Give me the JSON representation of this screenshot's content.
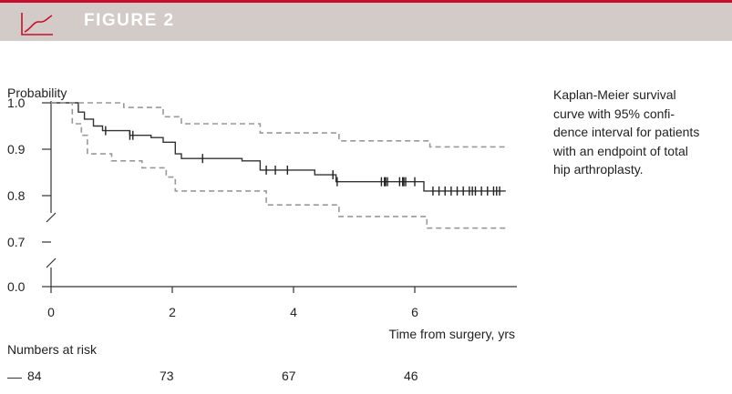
{
  "header": {
    "title": "FIGURE 2",
    "accent_color": "#c8102e",
    "band_color": "#d2cbc7",
    "icon": "line-chart-icon"
  },
  "caption": {
    "lines": [
      "Kaplan-Meier survival",
      "curve with 95% confi-",
      "dence interval for patients",
      "with an endpoint of total",
      "hip arthroplasty."
    ]
  },
  "risk_table": {
    "title": "Numbers at risk",
    "values": [
      "84",
      "73",
      "67",
      "46"
    ]
  },
  "chart_data": {
    "type": "line",
    "ylabel": "Probability",
    "xlabel": "Time from surgery, yrs",
    "xlim": [
      0,
      7.6
    ],
    "x_ticks": [
      "0",
      "2",
      "4",
      "6"
    ],
    "y_ticks": [
      "1.0",
      "0.9",
      "0.8",
      "0.7",
      "0.0"
    ],
    "y_axis_break": true,
    "grid": false,
    "series": [
      {
        "style": "solid",
        "color": "#333333",
        "points": [
          [
            0,
            1.0
          ],
          [
            0.38,
            1.0
          ],
          [
            0.45,
            0.98
          ],
          [
            0.55,
            0.965
          ],
          [
            0.7,
            0.95
          ],
          [
            0.85,
            0.94
          ],
          [
            1.1,
            0.94
          ],
          [
            1.3,
            0.93
          ],
          [
            1.5,
            0.93
          ],
          [
            1.65,
            0.925
          ],
          [
            1.85,
            0.915
          ],
          [
            2.05,
            0.89
          ],
          [
            2.15,
            0.88
          ],
          [
            2.5,
            0.88
          ],
          [
            3.15,
            0.875
          ],
          [
            3.45,
            0.855
          ],
          [
            4.1,
            0.855
          ],
          [
            4.35,
            0.845
          ],
          [
            4.7,
            0.83
          ],
          [
            5.2,
            0.83
          ],
          [
            6.05,
            0.83
          ],
          [
            6.15,
            0.81
          ],
          [
            7.5,
            0.81
          ]
        ],
        "censor_x": [
          0.9,
          1.3,
          1.35,
          2.5,
          3.55,
          3.7,
          3.9,
          4.65,
          4.72,
          5.45,
          5.5,
          5.52,
          5.55,
          5.75,
          5.8,
          5.82,
          5.85,
          6.0,
          6.3,
          6.4,
          6.5,
          6.6,
          6.7,
          6.8,
          6.9,
          6.95,
          7.0,
          7.1,
          7.2,
          7.3,
          7.35,
          7.4
        ]
      },
      {
        "style": "dashed",
        "color": "#999999",
        "points": [
          [
            0,
            1.0
          ],
          [
            0.9,
            1.0
          ],
          [
            1.2,
            0.99
          ],
          [
            1.85,
            0.97
          ],
          [
            2.15,
            0.955
          ],
          [
            3.1,
            0.955
          ],
          [
            3.45,
            0.935
          ],
          [
            4.6,
            0.935
          ],
          [
            4.75,
            0.918
          ],
          [
            6.15,
            0.918
          ],
          [
            6.25,
            0.905
          ],
          [
            7.5,
            0.905
          ]
        ]
      },
      {
        "style": "dashed",
        "color": "#999999",
        "points": [
          [
            0,
            1.0
          ],
          [
            0.35,
            0.955
          ],
          [
            0.5,
            0.93
          ],
          [
            0.6,
            0.89
          ],
          [
            1.0,
            0.875
          ],
          [
            1.5,
            0.86
          ],
          [
            1.9,
            0.84
          ],
          [
            2.05,
            0.81
          ],
          [
            3.4,
            0.81
          ],
          [
            3.55,
            0.78
          ],
          [
            4.3,
            0.78
          ],
          [
            4.75,
            0.755
          ],
          [
            6.0,
            0.755
          ],
          [
            6.2,
            0.73
          ],
          [
            7.5,
            0.73
          ]
        ]
      }
    ]
  }
}
